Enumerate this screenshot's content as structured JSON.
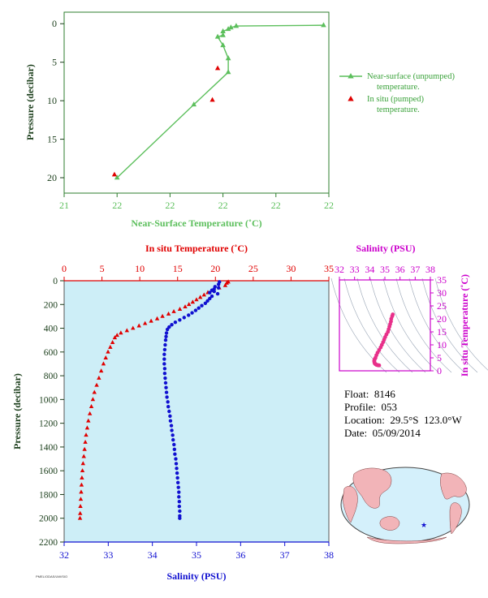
{
  "colors": {
    "near_surface": "#5cbf5c",
    "in_situ_red": "#e00000",
    "salinity_blue": "#1010d0",
    "ts_magenta": "#cc00cc",
    "ts_points": "#e8308a",
    "axis_dark": "#1a3d1a",
    "plot_bg": "#cdeef7"
  },
  "info": {
    "float_line": "Float:  8146",
    "profile_line": "Profile:  053",
    "location_line": "Location:  29.5°S  123.0°W",
    "date_line": "Date:  05/09/2014"
  },
  "fine_print": "PMEL/ODAS/UW/SIO",
  "chart_data": [
    {
      "type": "line",
      "id": "near_surface",
      "xlabel": "Near-Surface Temperature (˚C)",
      "ylabel": "Pressure (decibar)",
      "x_tick_labels": [
        "21",
        "22",
        "22",
        "22",
        "22",
        "22"
      ],
      "y_tick_labels": [
        "0",
        "5",
        "10",
        "15",
        "20"
      ],
      "y_ticks": [
        0,
        5,
        10,
        15,
        20
      ],
      "xlim": [
        21.0,
        22.0
      ],
      "ylim": [
        22,
        -1.5
      ],
      "legend": [
        "Near-surface (unpumped) temperature.",
        "In situ (pumped) temperature."
      ],
      "legend_position": "right",
      "series": [
        {
          "name": "Near-surface (unpumped) temperature.",
          "marker": "triangle",
          "points": [
            [
              21.98,
              0.2
            ],
            [
              21.65,
              0.3
            ],
            [
              21.63,
              0.5
            ],
            [
              21.62,
              0.7
            ],
            [
              21.6,
              1.0
            ],
            [
              21.6,
              1.5
            ],
            [
              21.58,
              1.7
            ],
            [
              21.6,
              2.8
            ],
            [
              21.62,
              4.5
            ],
            [
              21.62,
              6.3
            ],
            [
              21.49,
              10.5
            ],
            [
              21.2,
              20.0
            ]
          ]
        },
        {
          "name": "In situ (pumped) temperature.",
          "marker": "triangle",
          "points": [
            [
              21.58,
              5.8
            ],
            [
              21.56,
              9.9
            ],
            [
              21.19,
              19.6
            ]
          ]
        }
      ]
    },
    {
      "type": "line",
      "id": "profile",
      "ylabel": "Pressure (decibar)",
      "y_ticks": [
        0,
        200,
        400,
        600,
        800,
        1000,
        1200,
        1400,
        1600,
        1800,
        2000,
        2200
      ],
      "ylim": [
        2200,
        0
      ],
      "top_axis": {
        "label": "In situ Temperature (˚C)",
        "ticks": [
          0,
          5,
          10,
          15,
          20,
          25,
          30,
          35
        ],
        "lim": [
          0,
          35
        ]
      },
      "bottom_axis": {
        "label": "Salinity (PSU)",
        "ticks": [
          32,
          33,
          34,
          35,
          36,
          37,
          38
        ],
        "lim": [
          32,
          38
        ]
      },
      "series": [
        {
          "name": "In situ Temperature",
          "axis": "top",
          "marker": "triangle",
          "points": [
            [
              21.7,
              10
            ],
            [
              21.5,
              20
            ],
            [
              21.3,
              40
            ],
            [
              20.5,
              60
            ],
            [
              19.8,
              80
            ],
            [
              19.0,
              100
            ],
            [
              18.5,
              120
            ],
            [
              18.0,
              140
            ],
            [
              17.5,
              160
            ],
            [
              17.0,
              180
            ],
            [
              16.5,
              200
            ],
            [
              16.0,
              220
            ],
            [
              15.3,
              240
            ],
            [
              14.5,
              260
            ],
            [
              13.8,
              280
            ],
            [
              13.0,
              300
            ],
            [
              12.3,
              320
            ],
            [
              11.5,
              340
            ],
            [
              10.7,
              360
            ],
            [
              9.9,
              380
            ],
            [
              9.1,
              400
            ],
            [
              8.3,
              420
            ],
            [
              7.5,
              440
            ],
            [
              7.0,
              460
            ],
            [
              6.7,
              480
            ],
            [
              6.4,
              520
            ],
            [
              6.1,
              560
            ],
            [
              5.8,
              600
            ],
            [
              5.5,
              650
            ],
            [
              5.2,
              700
            ],
            [
              4.9,
              760
            ],
            [
              4.6,
              820
            ],
            [
              4.3,
              880
            ],
            [
              4.0,
              940
            ],
            [
              3.8,
              1000
            ],
            [
              3.6,
              1060
            ],
            [
              3.4,
              1120
            ],
            [
              3.2,
              1180
            ],
            [
              3.05,
              1240
            ],
            [
              2.9,
              1300
            ],
            [
              2.8,
              1360
            ],
            [
              2.7,
              1420
            ],
            [
              2.6,
              1480
            ],
            [
              2.5,
              1540
            ],
            [
              2.42,
              1600
            ],
            [
              2.35,
              1660
            ],
            [
              2.3,
              1720
            ],
            [
              2.25,
              1780
            ],
            [
              2.2,
              1840
            ],
            [
              2.15,
              1900
            ],
            [
              2.12,
              1960
            ],
            [
              2.1,
              2000
            ]
          ]
        },
        {
          "name": "Salinity",
          "axis": "bottom",
          "marker": "dot",
          "points": [
            [
              35.52,
              10
            ],
            [
              35.5,
              30
            ],
            [
              35.42,
              50
            ],
            [
              35.5,
              60
            ],
            [
              35.4,
              70
            ],
            [
              35.35,
              80
            ],
            [
              35.4,
              90
            ],
            [
              35.3,
              100
            ],
            [
              35.48,
              110
            ],
            [
              35.35,
              130
            ],
            [
              35.3,
              150
            ],
            [
              35.25,
              170
            ],
            [
              35.2,
              190
            ],
            [
              35.12,
              210
            ],
            [
              35.05,
              230
            ],
            [
              34.98,
              250
            ],
            [
              34.9,
              270
            ],
            [
              34.82,
              290
            ],
            [
              34.72,
              310
            ],
            [
              34.62,
              330
            ],
            [
              34.52,
              350
            ],
            [
              34.44,
              370
            ],
            [
              34.38,
              390
            ],
            [
              34.34,
              410
            ],
            [
              34.32,
              440
            ],
            [
              34.31,
              470
            ],
            [
              34.3,
              500
            ],
            [
              34.29,
              540
            ],
            [
              34.28,
              580
            ],
            [
              34.27,
              620
            ],
            [
              34.27,
              660
            ],
            [
              34.27,
              700
            ],
            [
              34.28,
              740
            ],
            [
              34.28,
              780
            ],
            [
              34.29,
              820
            ],
            [
              34.3,
              860
            ],
            [
              34.31,
              900
            ],
            [
              34.32,
              940
            ],
            [
              34.33,
              980
            ],
            [
              34.35,
              1020
            ],
            [
              34.36,
              1060
            ],
            [
              34.38,
              1100
            ],
            [
              34.4,
              1140
            ],
            [
              34.41,
              1180
            ],
            [
              34.43,
              1220
            ],
            [
              34.44,
              1260
            ],
            [
              34.46,
              1300
            ],
            [
              34.47,
              1340
            ],
            [
              34.49,
              1380
            ],
            [
              34.5,
              1420
            ],
            [
              34.51,
              1460
            ],
            [
              34.53,
              1500
            ],
            [
              34.54,
              1540
            ],
            [
              34.55,
              1580
            ],
            [
              34.56,
              1620
            ],
            [
              34.57,
              1660
            ],
            [
              34.58,
              1700
            ],
            [
              34.59,
              1740
            ],
            [
              34.6,
              1780
            ],
            [
              34.6,
              1820
            ],
            [
              34.61,
              1860
            ],
            [
              34.61,
              1900
            ],
            [
              34.62,
              1940
            ],
            [
              34.62,
              1980
            ],
            [
              34.62,
              2000
            ]
          ]
        }
      ]
    },
    {
      "type": "scatter",
      "id": "ts_diagram",
      "title": "Salinity (PSU)",
      "ylabel": "In situ Temperature (˚C)",
      "x_ticks": [
        32,
        33,
        34,
        35,
        36,
        37,
        38
      ],
      "xlim": [
        32,
        38
      ],
      "y_ticks": [
        0,
        5,
        10,
        15,
        20,
        25,
        30,
        35
      ],
      "ylim": [
        0,
        35
      ],
      "points": [
        [
          35.52,
          21.7
        ],
        [
          35.48,
          21.0
        ],
        [
          35.42,
          20.0
        ],
        [
          35.4,
          19.0
        ],
        [
          35.35,
          18.0
        ],
        [
          35.3,
          17.0
        ],
        [
          35.25,
          16.0
        ],
        [
          35.2,
          15.0
        ],
        [
          35.1,
          14.0
        ],
        [
          35.02,
          13.0
        ],
        [
          34.95,
          12.0
        ],
        [
          34.88,
          11.0
        ],
        [
          34.8,
          10.0
        ],
        [
          34.72,
          9.0
        ],
        [
          34.62,
          8.0
        ],
        [
          34.52,
          7.0
        ],
        [
          34.44,
          6.0
        ],
        [
          34.38,
          5.0
        ],
        [
          34.33,
          4.5
        ],
        [
          34.3,
          4.0
        ],
        [
          34.3,
          3.5
        ],
        [
          34.32,
          3.0
        ],
        [
          34.35,
          2.7
        ],
        [
          34.4,
          2.5
        ],
        [
          34.45,
          2.3
        ],
        [
          34.5,
          2.2
        ],
        [
          34.55,
          2.15
        ],
        [
          34.6,
          2.1
        ],
        [
          34.62,
          2.1
        ]
      ]
    }
  ]
}
